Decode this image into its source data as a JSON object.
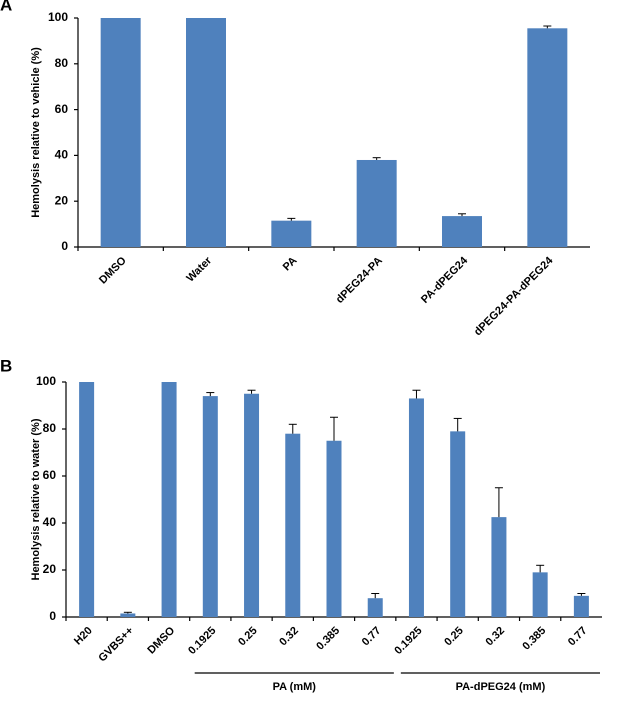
{
  "chart_data": [
    {
      "type": "bar",
      "panel_label": "A",
      "ylabel": "Hemolysis relative to vehicle (%)",
      "categories": [
        "DMSO",
        "Water",
        "PA",
        "dPEG24-PA",
        "PA-dPEG24",
        "dPEG24-PA-dPEG24"
      ],
      "values": [
        100,
        100,
        11.5,
        38,
        13.5,
        95.5
      ],
      "errors": [
        0,
        0,
        1,
        1,
        1,
        1
      ],
      "color": "#4f81bd",
      "ylim": [
        0,
        100
      ],
      "yticks": [
        0,
        20,
        40,
        60,
        80,
        100
      ],
      "grid": false
    },
    {
      "type": "bar",
      "panel_label": "B",
      "ylabel": "Hemolysis relative to water (%)",
      "categories": [
        "H20",
        "GVBS++",
        "DMSO",
        "0.1925",
        "0.25",
        "0.32",
        "0.385",
        "0.77",
        "0.1925",
        "0.25",
        "0.32",
        "0.385",
        "0.77"
      ],
      "values": [
        100,
        1.5,
        100,
        94,
        95,
        78,
        75,
        8,
        93,
        79,
        42.5,
        19,
        9
      ],
      "errors": [
        0,
        0.5,
        0,
        1.5,
        1.5,
        4,
        10,
        2,
        3.5,
        5.5,
        12.5,
        3,
        1
      ],
      "groups": [
        "PA (mM)",
        "PA-dPEG24 (mM)"
      ],
      "color": "#4f81bd",
      "ylim": [
        0,
        100
      ],
      "yticks": [
        0,
        20,
        40,
        60,
        80,
        100
      ],
      "grid": false
    }
  ]
}
